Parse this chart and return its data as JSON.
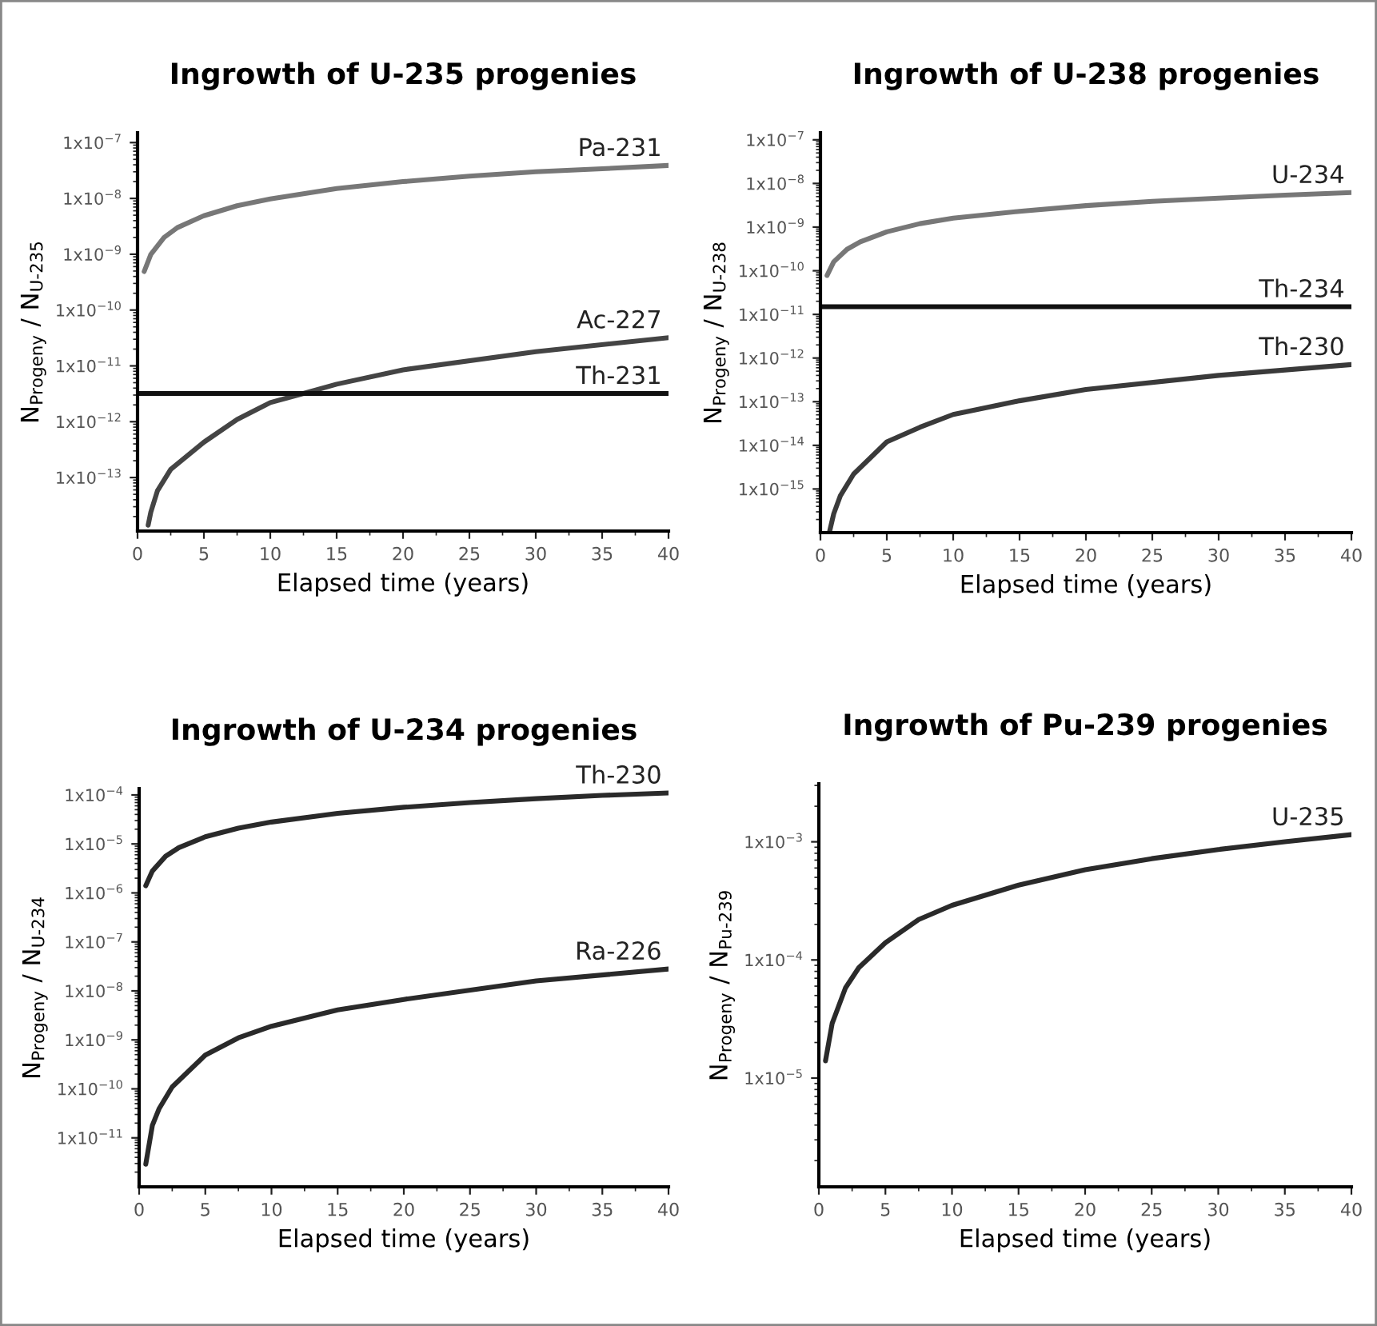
{
  "chart_data": [
    {
      "type": "line",
      "title": "Ingrowth of U-235 progenies",
      "xlabel": "Elapsed time (years)",
      "ylabel": "N$_{Progeny}$ / N$_{U-235}$",
      "log": "y",
      "xlim": [
        0,
        40
      ],
      "xticks": [
        0,
        5,
        10,
        15,
        20,
        25,
        30,
        35,
        40
      ],
      "ylim": [
        1.1e-14,
        1.5e-07
      ],
      "yticks": [
        {
          "value": 1e-13,
          "label": "1x10$^{−13}$"
        },
        {
          "value": 1e-12,
          "label": "1x10$^{−12}$"
        },
        {
          "value": 1e-11,
          "label": "1x10$^{−11}$"
        },
        {
          "value": 1e-10,
          "label": "1x10$^{−10}$"
        },
        {
          "value": 1e-09,
          "label": "1x10$^{−9}$"
        },
        {
          "value": 1e-08,
          "label": "1x10$^{−8}$"
        },
        {
          "value": 1e-07,
          "label": "1x10$^{−7}$"
        }
      ],
      "series": [
        {
          "name": "Pa-231",
          "color": "#777777",
          "x": [
            0.5,
            1,
            2,
            3,
            5,
            7.5,
            10,
            15,
            20,
            25,
            30,
            35,
            40
          ],
          "values": [
            4.9e-10,
            9.9e-10,
            2e-09,
            3e-09,
            4.9e-09,
            7.4e-09,
            9.8e-09,
            1.5e-08,
            2e-08,
            2.5e-08,
            3e-08,
            3.4e-08,
            3.9e-08
          ]
        },
        {
          "name": "Ac-227",
          "color": "#444444",
          "x": [
            0.8,
            1,
            1.5,
            2.5,
            5,
            7.5,
            10,
            12.5,
            15,
            20,
            30,
            40
          ],
          "values": [
            1.4e-14,
            2.4e-14,
            5.8e-14,
            1.4e-13,
            4.3e-13,
            1.1e-12,
            2.2e-12,
            3.2e-12,
            4.7e-12,
            8.5e-12,
            1.8e-11,
            3.2e-11
          ]
        },
        {
          "name": "Th-231",
          "color": "#111111",
          "x": [
            0,
            40
          ],
          "values": [
            3.2e-12,
            3.2e-12
          ]
        }
      ]
    },
    {
      "type": "line",
      "title": "Ingrowth of U-238 progenies",
      "xlabel": "Elapsed time (years)",
      "ylabel": "N$_{Progeny}$ / N$_{U-238}$",
      "log": "y",
      "xlim": [
        0,
        40
      ],
      "xticks": [
        0,
        5,
        10,
        15,
        20,
        25,
        30,
        35,
        40
      ],
      "ylim": [
        1e-16,
        1.45e-07
      ],
      "yticks": [
        {
          "value": 1e-15,
          "label": "1x10$^{−15}$"
        },
        {
          "value": 1e-14,
          "label": "1x10$^{−14}$"
        },
        {
          "value": 1e-13,
          "label": "1x10$^{−13}$"
        },
        {
          "value": 1e-12,
          "label": "1x10$^{−12}$"
        },
        {
          "value": 1e-11,
          "label": "1x10$^{−11}$"
        },
        {
          "value": 1e-10,
          "label": "1x10$^{−10}$"
        },
        {
          "value": 1e-09,
          "label": "1x10$^{−9}$"
        },
        {
          "value": 1e-08,
          "label": "1x10$^{−8}$"
        },
        {
          "value": 1e-07,
          "label": "1x10$^{−7}$"
        }
      ],
      "series": [
        {
          "name": "U-234",
          "color": "#777777",
          "x": [
            0.5,
            1,
            2,
            3,
            5,
            7.5,
            10,
            15,
            20,
            25,
            30,
            35,
            40
          ],
          "values": [
            7.8e-11,
            1.6e-10,
            3.1e-10,
            4.6e-10,
            7.8e-10,
            1.2e-09,
            1.6e-09,
            2.3e-09,
            3.1e-09,
            3.9e-09,
            4.6e-09,
            5.4e-09,
            6.2e-09
          ]
        },
        {
          "name": "Th-234",
          "color": "#111111",
          "x": [
            0,
            40
          ],
          "values": [
            1.5e-11,
            1.5e-11
          ]
        },
        {
          "name": "Th-230",
          "color": "#3a3a3a",
          "x": [
            0.7,
            1,
            1.5,
            2.5,
            5,
            7.5,
            10,
            15,
            20,
            30,
            40
          ],
          "values": [
            1.1e-16,
            2.7e-16,
            7e-16,
            2.2e-15,
            1.2e-14,
            2.6e-14,
            5.1e-14,
            1.05e-13,
            1.9e-13,
            4e-13,
            7.1e-13
          ]
        }
      ]
    },
    {
      "type": "line",
      "title": "Ingrowth of U-234 progenies",
      "xlabel": "Elapsed time (years)",
      "ylabel": "N$_{Progeny}$ / N$_{U-234}$",
      "log": "y",
      "xlim": [
        0,
        40
      ],
      "xticks": [
        0,
        5,
        10,
        15,
        20,
        25,
        30,
        35,
        40
      ],
      "ylim": [
        1e-12,
        0.000135
      ],
      "yticks": [
        {
          "value": 1e-11,
          "label": "1x10$^{−11}$"
        },
        {
          "value": 1e-10,
          "label": "1x10$^{−10}$"
        },
        {
          "value": 1e-09,
          "label": "1x10$^{−9}$"
        },
        {
          "value": 1e-08,
          "label": "1x10$^{−8}$"
        },
        {
          "value": 1e-07,
          "label": "1x10$^{−7}$"
        },
        {
          "value": 1e-06,
          "label": "1x10$^{−6}$"
        },
        {
          "value": 1e-05,
          "label": "1x10$^{−5}$"
        },
        {
          "value": 0.0001,
          "label": "1x10$^{−4}$"
        }
      ],
      "series": [
        {
          "name": "Th-230",
          "color": "#2a2a2a",
          "x": [
            0.5,
            1,
            2,
            3,
            5,
            7.5,
            10,
            15,
            20,
            25,
            30,
            35,
            40
          ],
          "values": [
            1.4e-06,
            2.8e-06,
            5.6e-06,
            8.4e-06,
            1.4e-05,
            2.1e-05,
            2.8e-05,
            4.2e-05,
            5.6e-05,
            7e-05,
            8.4e-05,
            9.8e-05,
            0.00011
          ]
        },
        {
          "name": "Ra-226",
          "color": "#2a2a2a",
          "x": [
            0.5,
            1,
            1.5,
            2.5,
            5,
            7.5,
            10,
            15,
            20,
            30,
            40
          ],
          "values": [
            2.9e-12,
            1.8e-11,
            3.9e-11,
            1.1e-10,
            4.9e-10,
            1.1e-09,
            1.9e-09,
            4.1e-09,
            6.7e-09,
            1.6e-08,
            2.8e-08
          ]
        }
      ]
    },
    {
      "type": "line",
      "title": "Ingrowth of Pu-239 progenies",
      "xlabel": "Elapsed time (years)",
      "ylabel": "N$_{Progeny}$ / N$_{Pu-239}$",
      "log": "y",
      "xlim": [
        0,
        40
      ],
      "xticks": [
        0,
        5,
        10,
        15,
        20,
        25,
        30,
        35,
        40
      ],
      "ylim": [
        1.2e-06,
        0.0031
      ],
      "yticks": [
        {
          "value": 1e-05,
          "label": "1x10$^{−5}$"
        },
        {
          "value": 0.0001,
          "label": "1x10$^{−4}$"
        },
        {
          "value": 0.001,
          "label": "1x10$^{−3}$"
        }
      ],
      "series": [
        {
          "name": "U-235",
          "color": "#2a2a2a",
          "x": [
            0.5,
            1,
            2,
            3,
            5,
            7.5,
            10,
            15,
            20,
            25,
            30,
            35,
            40
          ],
          "values": [
            1.4e-05,
            2.9e-05,
            5.8e-05,
            8.6e-05,
            0.00014,
            0.00022,
            0.00029,
            0.00043,
            0.00058,
            0.00072,
            0.00086,
            0.001,
            0.00115
          ]
        }
      ]
    }
  ]
}
